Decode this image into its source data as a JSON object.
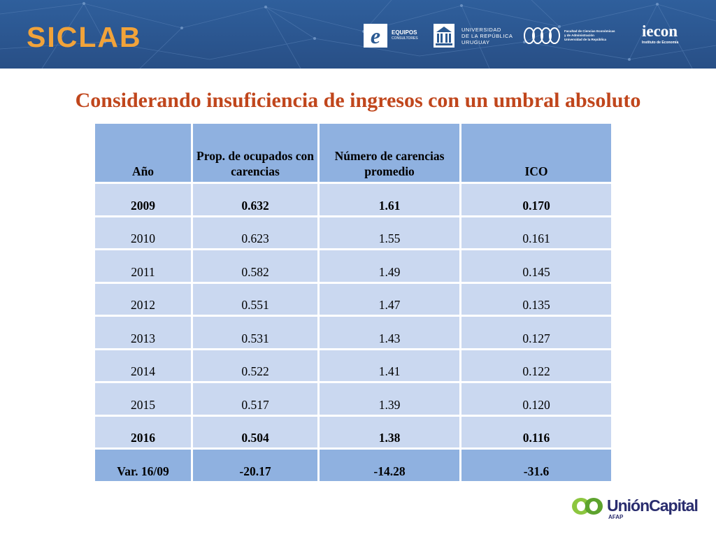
{
  "header": {
    "brand": "SICLAB",
    "colors": {
      "band": "#2b5a92",
      "brand": "#f1a33a"
    },
    "logos": {
      "equipos": {
        "mark": "e",
        "line1": "EQUIPOS",
        "line2": "CONSULTORES"
      },
      "udelar": {
        "line1": "UNIVERSIDAD",
        "line2": "DE LA REPÚBLICA",
        "line3": "URUGUAY"
      },
      "fcea": {
        "line1": "Facultad de Ciencias Económicas",
        "line2": "y de Administración",
        "line3": "Universidad de la República"
      },
      "iecon": {
        "main": "iecon",
        "sub": "Instituto de Economía"
      }
    }
  },
  "title": "Considerando insuficiencia de ingresos con un umbral absoluto",
  "table": {
    "headers": [
      "Año",
      "Prop. de ocupados con carencias",
      "Número de carencias promedio",
      "ICO"
    ],
    "rows": [
      [
        "2009",
        "0.632",
        "1.61",
        "0.170"
      ],
      [
        "2010",
        "0.623",
        "1.55",
        "0.161"
      ],
      [
        "2011",
        "0.582",
        "1.49",
        "0.145"
      ],
      [
        "2012",
        "0.551",
        "1.47",
        "0.135"
      ],
      [
        "2013",
        "0.531",
        "1.43",
        "0.127"
      ],
      [
        "2014",
        "0.522",
        "1.41",
        "0.122"
      ],
      [
        "2015",
        "0.517",
        "1.39",
        "0.120"
      ],
      [
        "2016",
        "0.504",
        "1.38",
        "0.116"
      ],
      [
        "Var. 16/09",
        "-20.17",
        "-14.28",
        "-31.6"
      ]
    ],
    "colors": {
      "header": "#8fb1e0",
      "body": "#cad8f0",
      "title": "#c0461c"
    }
  },
  "footer": {
    "logo": {
      "main": "UniónCapital",
      "sub": "AFAP",
      "colors": [
        "#8cc63f",
        "#2a2d6e"
      ]
    }
  }
}
